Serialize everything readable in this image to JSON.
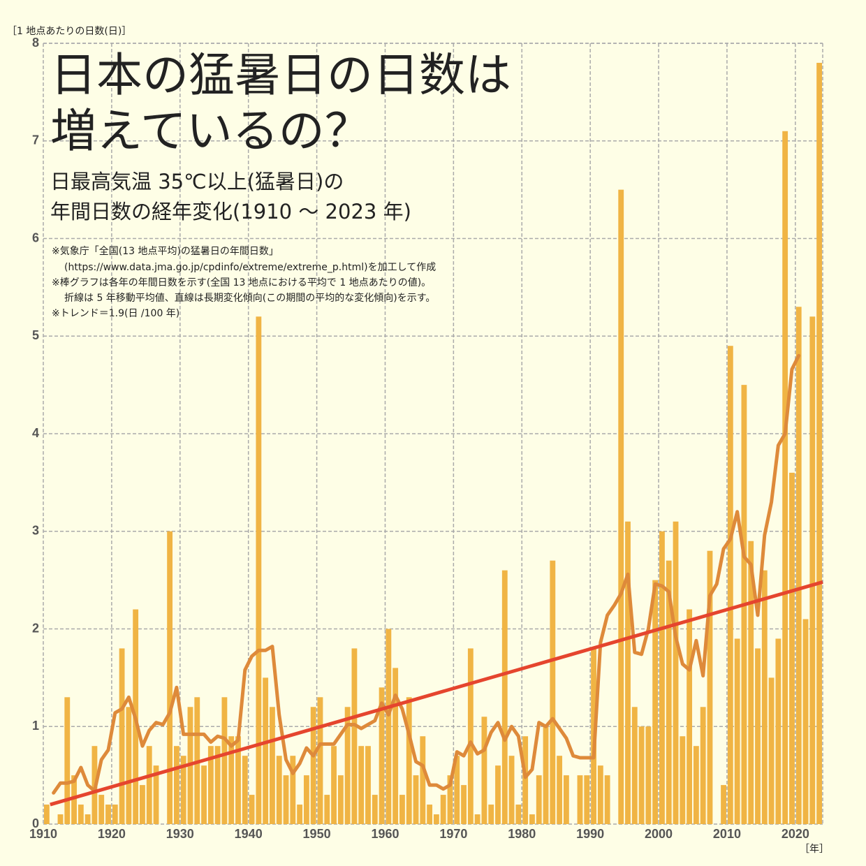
{
  "chart_data": {
    "type": "bar",
    "title_lines": [
      "日本の猛暑日の日数は",
      "増えているの？"
    ],
    "subtitle_lines": [
      "日最高気温 35℃以上(猛暑日)の",
      "年間日数の経年変化(1910 ～ 2023 年)"
    ],
    "notes": [
      "※気象庁「全国(13 地点平均)の猛暑日の年間日数」",
      "(https://www.data.jma.go.jp/cpdinfo/extreme/extreme_p.html)を加工して作成",
      "※棒グラフは各年の年間日数を示す(全国 13 地点における平均で 1 地点あたりの値)。",
      "折線は 5 年移動平均値、直線は長期変化傾向(この期間の平均的な変化傾向)を示す。",
      "※トレンド＝1.9(日 /100 年)"
    ],
    "y_label": "［1 地点あたりの日数(日)］",
    "x_label": "［年］",
    "xlim": [
      1910,
      2024
    ],
    "xticks": [
      1910,
      1920,
      1930,
      1940,
      1950,
      1960,
      1970,
      1980,
      1990,
      2000,
      2010,
      2020
    ],
    "ylim": [
      0,
      8
    ],
    "yticks": [
      0,
      1,
      2,
      3,
      4,
      5,
      6,
      7,
      8
    ],
    "grid": true,
    "x": [
      1910,
      1911,
      1912,
      1913,
      1914,
      1915,
      1916,
      1917,
      1918,
      1919,
      1920,
      1921,
      1922,
      1923,
      1924,
      1925,
      1926,
      1927,
      1928,
      1929,
      1930,
      1931,
      1932,
      1933,
      1934,
      1935,
      1936,
      1937,
      1938,
      1939,
      1940,
      1941,
      1942,
      1943,
      1944,
      1945,
      1946,
      1947,
      1948,
      1949,
      1950,
      1951,
      1952,
      1953,
      1954,
      1955,
      1956,
      1957,
      1958,
      1959,
      1960,
      1961,
      1962,
      1963,
      1964,
      1965,
      1966,
      1967,
      1968,
      1969,
      1970,
      1971,
      1972,
      1973,
      1974,
      1975,
      1976,
      1977,
      1978,
      1979,
      1980,
      1981,
      1982,
      1983,
      1984,
      1985,
      1986,
      1987,
      1988,
      1989,
      1990,
      1991,
      1992,
      1993,
      1994,
      1995,
      1996,
      1997,
      1998,
      1999,
      2000,
      2001,
      2002,
      2003,
      2004,
      2005,
      2006,
      2007,
      2008,
      2009,
      2010,
      2011,
      2012,
      2013,
      2014,
      2015,
      2016,
      2017,
      2018,
      2019,
      2020,
      2021,
      2022,
      2023
    ],
    "series": [
      {
        "kind": "bar",
        "color": "#f0b444",
        "values": [
          0.2,
          0,
          0.1,
          1.3,
          0.5,
          0.2,
          0.1,
          0.8,
          0.3,
          0.2,
          0.2,
          1.8,
          1.2,
          2.2,
          0.4,
          0.8,
          0.6,
          0,
          3.0,
          0.8,
          0.7,
          1.2,
          1.3,
          0.6,
          0.8,
          0.8,
          1.3,
          0.9,
          0.9,
          0.7,
          0.3,
          5.2,
          1.5,
          1.2,
          0.7,
          0.5,
          0.7,
          0.2,
          0.5,
          1.2,
          1.3,
          0.3,
          0.8,
          0.5,
          1.2,
          1.8,
          0.8,
          0.8,
          0.3,
          1.4,
          2.0,
          1.6,
          0.3,
          1.3,
          0.5,
          0.9,
          0.2,
          0.1,
          0.3,
          0.5,
          0.7,
          0.4,
          1.8,
          0.1,
          1.1,
          0.2,
          0.6,
          2.6,
          0.7,
          0.2,
          0.9,
          0.1,
          0.5,
          1.0,
          2.7,
          0.7,
          0.5,
          0,
          0.5,
          0.5,
          1.8,
          0.6,
          0.5,
          0,
          6.5,
          3.1,
          1.2,
          1.0,
          1.0,
          2.5,
          3.0,
          2.7,
          3.1,
          0.9,
          2.2,
          0.8,
          1.2,
          2.8,
          0,
          0.4,
          4.9,
          1.9,
          4.5,
          2.9,
          1.8,
          2.6,
          1.5,
          1.9,
          7.1,
          3.6,
          5.3,
          2.1,
          5.2,
          7.8
        ]
      },
      {
        "kind": "line",
        "color": "#de8a3a",
        "values": [
          null,
          0.32,
          0.42,
          0.42,
          0.44,
          0.58,
          0.4,
          0.34,
          0.66,
          0.76,
          1.14,
          1.18,
          1.3,
          1.08,
          0.8,
          0.96,
          1.04,
          1.02,
          1.14,
          1.4,
          0.92,
          0.92,
          0.92,
          0.92,
          0.84,
          0.9,
          0.88,
          0.8,
          0.86,
          1.58,
          1.72,
          1.78,
          1.78,
          1.82,
          1.12,
          0.66,
          0.52,
          0.62,
          0.78,
          0.7,
          0.82,
          0.82,
          0.82,
          0.92,
          1.02,
          1.02,
          0.98,
          1.02,
          1.06,
          1.24,
          1.12,
          1.32,
          1.18,
          0.92,
          0.64,
          0.6,
          0.4,
          0.4,
          0.36,
          0.4,
          0.74,
          0.7,
          0.84,
          0.72,
          0.76,
          0.94,
          1.04,
          0.86,
          1.0,
          0.9,
          0.48,
          0.56,
          1.04,
          1.0,
          1.08,
          0.98,
          0.88,
          0.7,
          0.68,
          0.68,
          0.68,
          1.86,
          2.14,
          2.24,
          2.36,
          2.56,
          1.76,
          1.74,
          2.0,
          2.46,
          2.44,
          2.38,
          1.92,
          1.64,
          1.58,
          1.88,
          1.52,
          2.34,
          2.46,
          2.82,
          2.92,
          3.2,
          2.74,
          2.66,
          2.14,
          2.96,
          3.3,
          3.88,
          4.0,
          4.66,
          4.8,
          null,
          null,
          null
        ]
      }
    ],
    "trend": {
      "color": "#e5452e",
      "x": [
        1911,
        2024
      ],
      "values": [
        0.2,
        2.48
      ]
    }
  }
}
